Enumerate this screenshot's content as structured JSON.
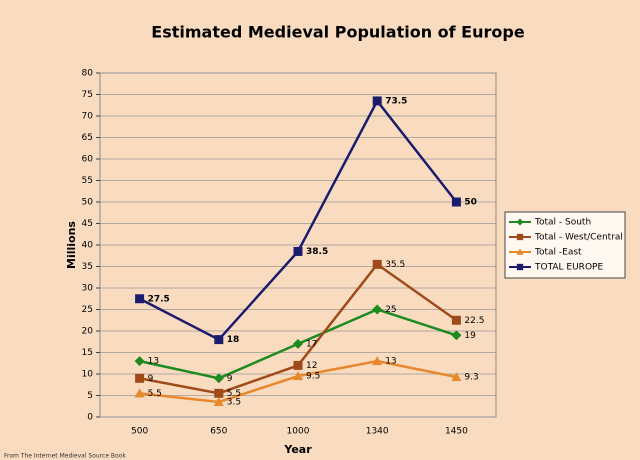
{
  "chart_data": {
    "type": "line",
    "title": "Estimated Medieval Population of Europe",
    "x_label": "Year",
    "y_label": "Millions",
    "source": "From The Internet Medieval Source Book",
    "categories": [
      "500",
      "650",
      "1000",
      "1340",
      "1450"
    ],
    "series": [
      {
        "name": "Total - South",
        "color": "#1f8a1f",
        "marker": "diamond",
        "values": [
          13,
          9,
          17,
          25,
          19
        ]
      },
      {
        "name": "Total - West/Central",
        "color": "#a04a1a",
        "marker": "square",
        "values": [
          9,
          5.5,
          12,
          35.5,
          22.5
        ]
      },
      {
        "name": "Total -East",
        "color": "#e8882c",
        "marker": "triangle",
        "values": [
          5.5,
          3.5,
          9.5,
          13,
          9.3
        ]
      },
      {
        "name": "TOTAL EUROPE",
        "color": "#1c1c6e",
        "marker": "square",
        "bold_labels": true,
        "values": [
          27.5,
          18,
          38.5,
          73.5,
          50
        ]
      }
    ],
    "ylim": [
      0,
      80
    ],
    "yticks": [
      0,
      5,
      10,
      15,
      20,
      25,
      30,
      35,
      40,
      45,
      50,
      55,
      60,
      65,
      70,
      75,
      80
    ],
    "grid": true,
    "data_labels": true,
    "legend": "right"
  }
}
